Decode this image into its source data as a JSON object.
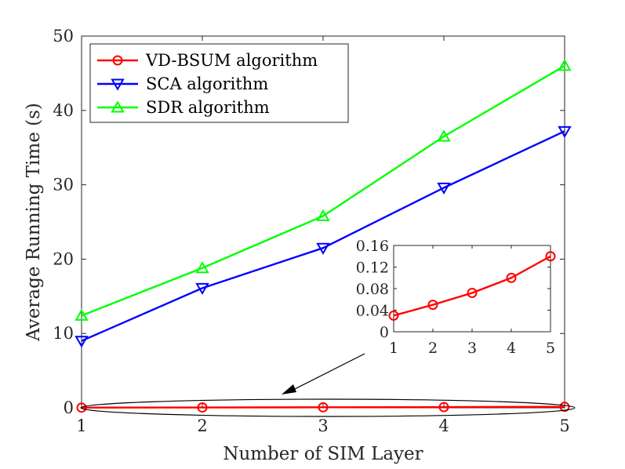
{
  "chart_data": {
    "type": "line",
    "xlabel": "Number of SIM Layer",
    "ylabel": "Average Running Time (s)",
    "xlim": [
      1,
      5
    ],
    "ylim": [
      0,
      50
    ],
    "x_ticks": [
      "1",
      "2",
      "3",
      "4",
      "5"
    ],
    "y_ticks": [
      "0",
      "10",
      "20",
      "30",
      "40",
      "50"
    ],
    "grid": false,
    "legend_position": "top-left",
    "x": [
      1,
      2,
      3,
      4,
      5
    ],
    "series": [
      {
        "name": "VD-BSUM algorithm",
        "color": "#ff0000",
        "marker": "circle",
        "values": [
          0.03,
          0.05,
          0.07,
          0.1,
          0.14
        ]
      },
      {
        "name": "SCA algorithm",
        "color": "#0000ff",
        "marker": "triangle-down",
        "values": [
          9.0,
          16.1,
          21.5,
          29.6,
          37.2
        ]
      },
      {
        "name": "SDR algorithm",
        "color": "#00ff00",
        "marker": "triangle-up",
        "values": [
          12.4,
          18.8,
          25.8,
          36.5,
          46.0
        ]
      }
    ],
    "inset": {
      "series_name": "VD-BSUM algorithm",
      "x": [
        1,
        2,
        3,
        4,
        5
      ],
      "values": [
        0.03,
        0.05,
        0.072,
        0.1,
        0.14
      ],
      "xlim": [
        1,
        5
      ],
      "ylim": [
        0,
        0.16
      ],
      "x_ticks": [
        "1",
        "2",
        "3",
        "4",
        "5"
      ],
      "y_ticks": [
        "0",
        "0.04",
        "0.08",
        "0.12",
        "0.16"
      ]
    }
  }
}
